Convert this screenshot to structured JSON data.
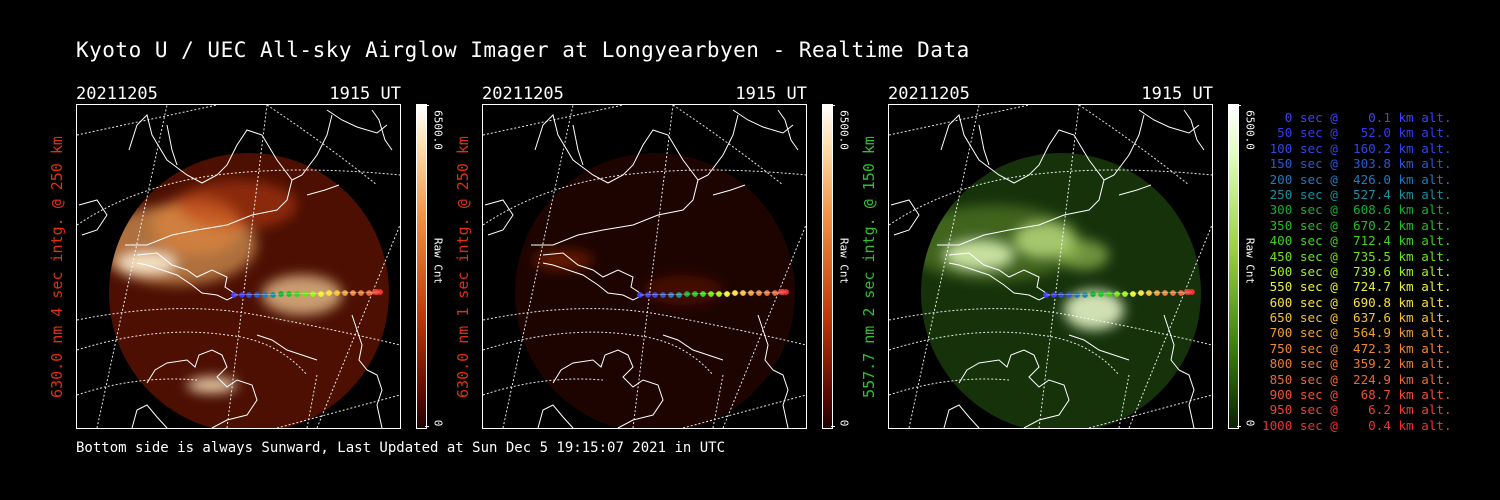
{
  "title": "Kyoto U / UEC All-sky Airglow Imager at Longyearbyen - Realtime Data",
  "footer": "Bottom side is always Sunward, Last Updated at Sun Dec  5 19:15:07 2021 in UTC",
  "panels": [
    {
      "date": "20211205",
      "time": "1915 UT",
      "ylabel": "630.0 nm 4 sec intg. @ 250 km",
      "ylabel_color": "#e03010",
      "cbar_max": "6500.0",
      "cbar_min": "0",
      "cbar_unit": "Raw Cnt",
      "scheme": "red"
    },
    {
      "date": "20211205",
      "time": "1915 UT",
      "ylabel": "630.0 nm 1 sec intg. @ 250 km",
      "ylabel_color": "#e03010",
      "cbar_max": "6500.0",
      "cbar_min": "0",
      "cbar_unit": "Raw Cnt",
      "scheme": "red"
    },
    {
      "date": "20211205",
      "time": "1915 UT",
      "ylabel": "557.7 nm 2 sec intg. @ 150 km",
      "ylabel_color": "#30c030",
      "cbar_max": "6500.0",
      "cbar_min": "0",
      "cbar_unit": "Raw Cnt",
      "scheme": "green"
    }
  ],
  "legend": [
    {
      "text": "   0 sec @    0.1 km alt.",
      "color": "#4040ff"
    },
    {
      "text": "  50 sec @   52.0 km alt.",
      "color": "#3838f0"
    },
    {
      "text": " 100 sec @  160.2 km alt.",
      "color": "#3048e8"
    },
    {
      "text": " 150 sec @  303.8 km alt.",
      "color": "#2858d8"
    },
    {
      "text": " 200 sec @  426.0 km alt.",
      "color": "#2078c0"
    },
    {
      "text": " 250 sec @  527.4 km alt.",
      "color": "#1890a0"
    },
    {
      "text": " 300 sec @  608.6 km alt.",
      "color": "#10b030"
    },
    {
      "text": " 350 sec @  670.2 km alt.",
      "color": "#20c020"
    },
    {
      "text": " 400 sec @  712.4 km alt.",
      "color": "#40d020"
    },
    {
      "text": " 450 sec @  735.5 km alt.",
      "color": "#70e020"
    },
    {
      "text": " 500 sec @  739.6 km alt.",
      "color": "#a0f020"
    },
    {
      "text": " 550 sec @  724.7 km alt.",
      "color": "#e8f040"
    },
    {
      "text": " 600 sec @  690.8 km alt.",
      "color": "#f8e040"
    },
    {
      "text": " 650 sec @  637.6 km alt.",
      "color": "#f8c030"
    },
    {
      "text": " 700 sec @  564.9 km alt.",
      "color": "#f0a030"
    },
    {
      "text": " 750 sec @  472.3 km alt.",
      "color": "#f08830"
    },
    {
      "text": " 800 sec @  359.2 km alt.",
      "color": "#f07830"
    },
    {
      "text": " 850 sec @  224.9 km alt.",
      "color": "#f06830"
    },
    {
      "text": " 900 sec @   68.7 km alt.",
      "color": "#f05030"
    },
    {
      "text": " 950 sec @    6.2 km alt.",
      "color": "#f04030"
    },
    {
      "text": "1000 sec @    0.4 km alt.",
      "color": "#f03030"
    }
  ]
}
